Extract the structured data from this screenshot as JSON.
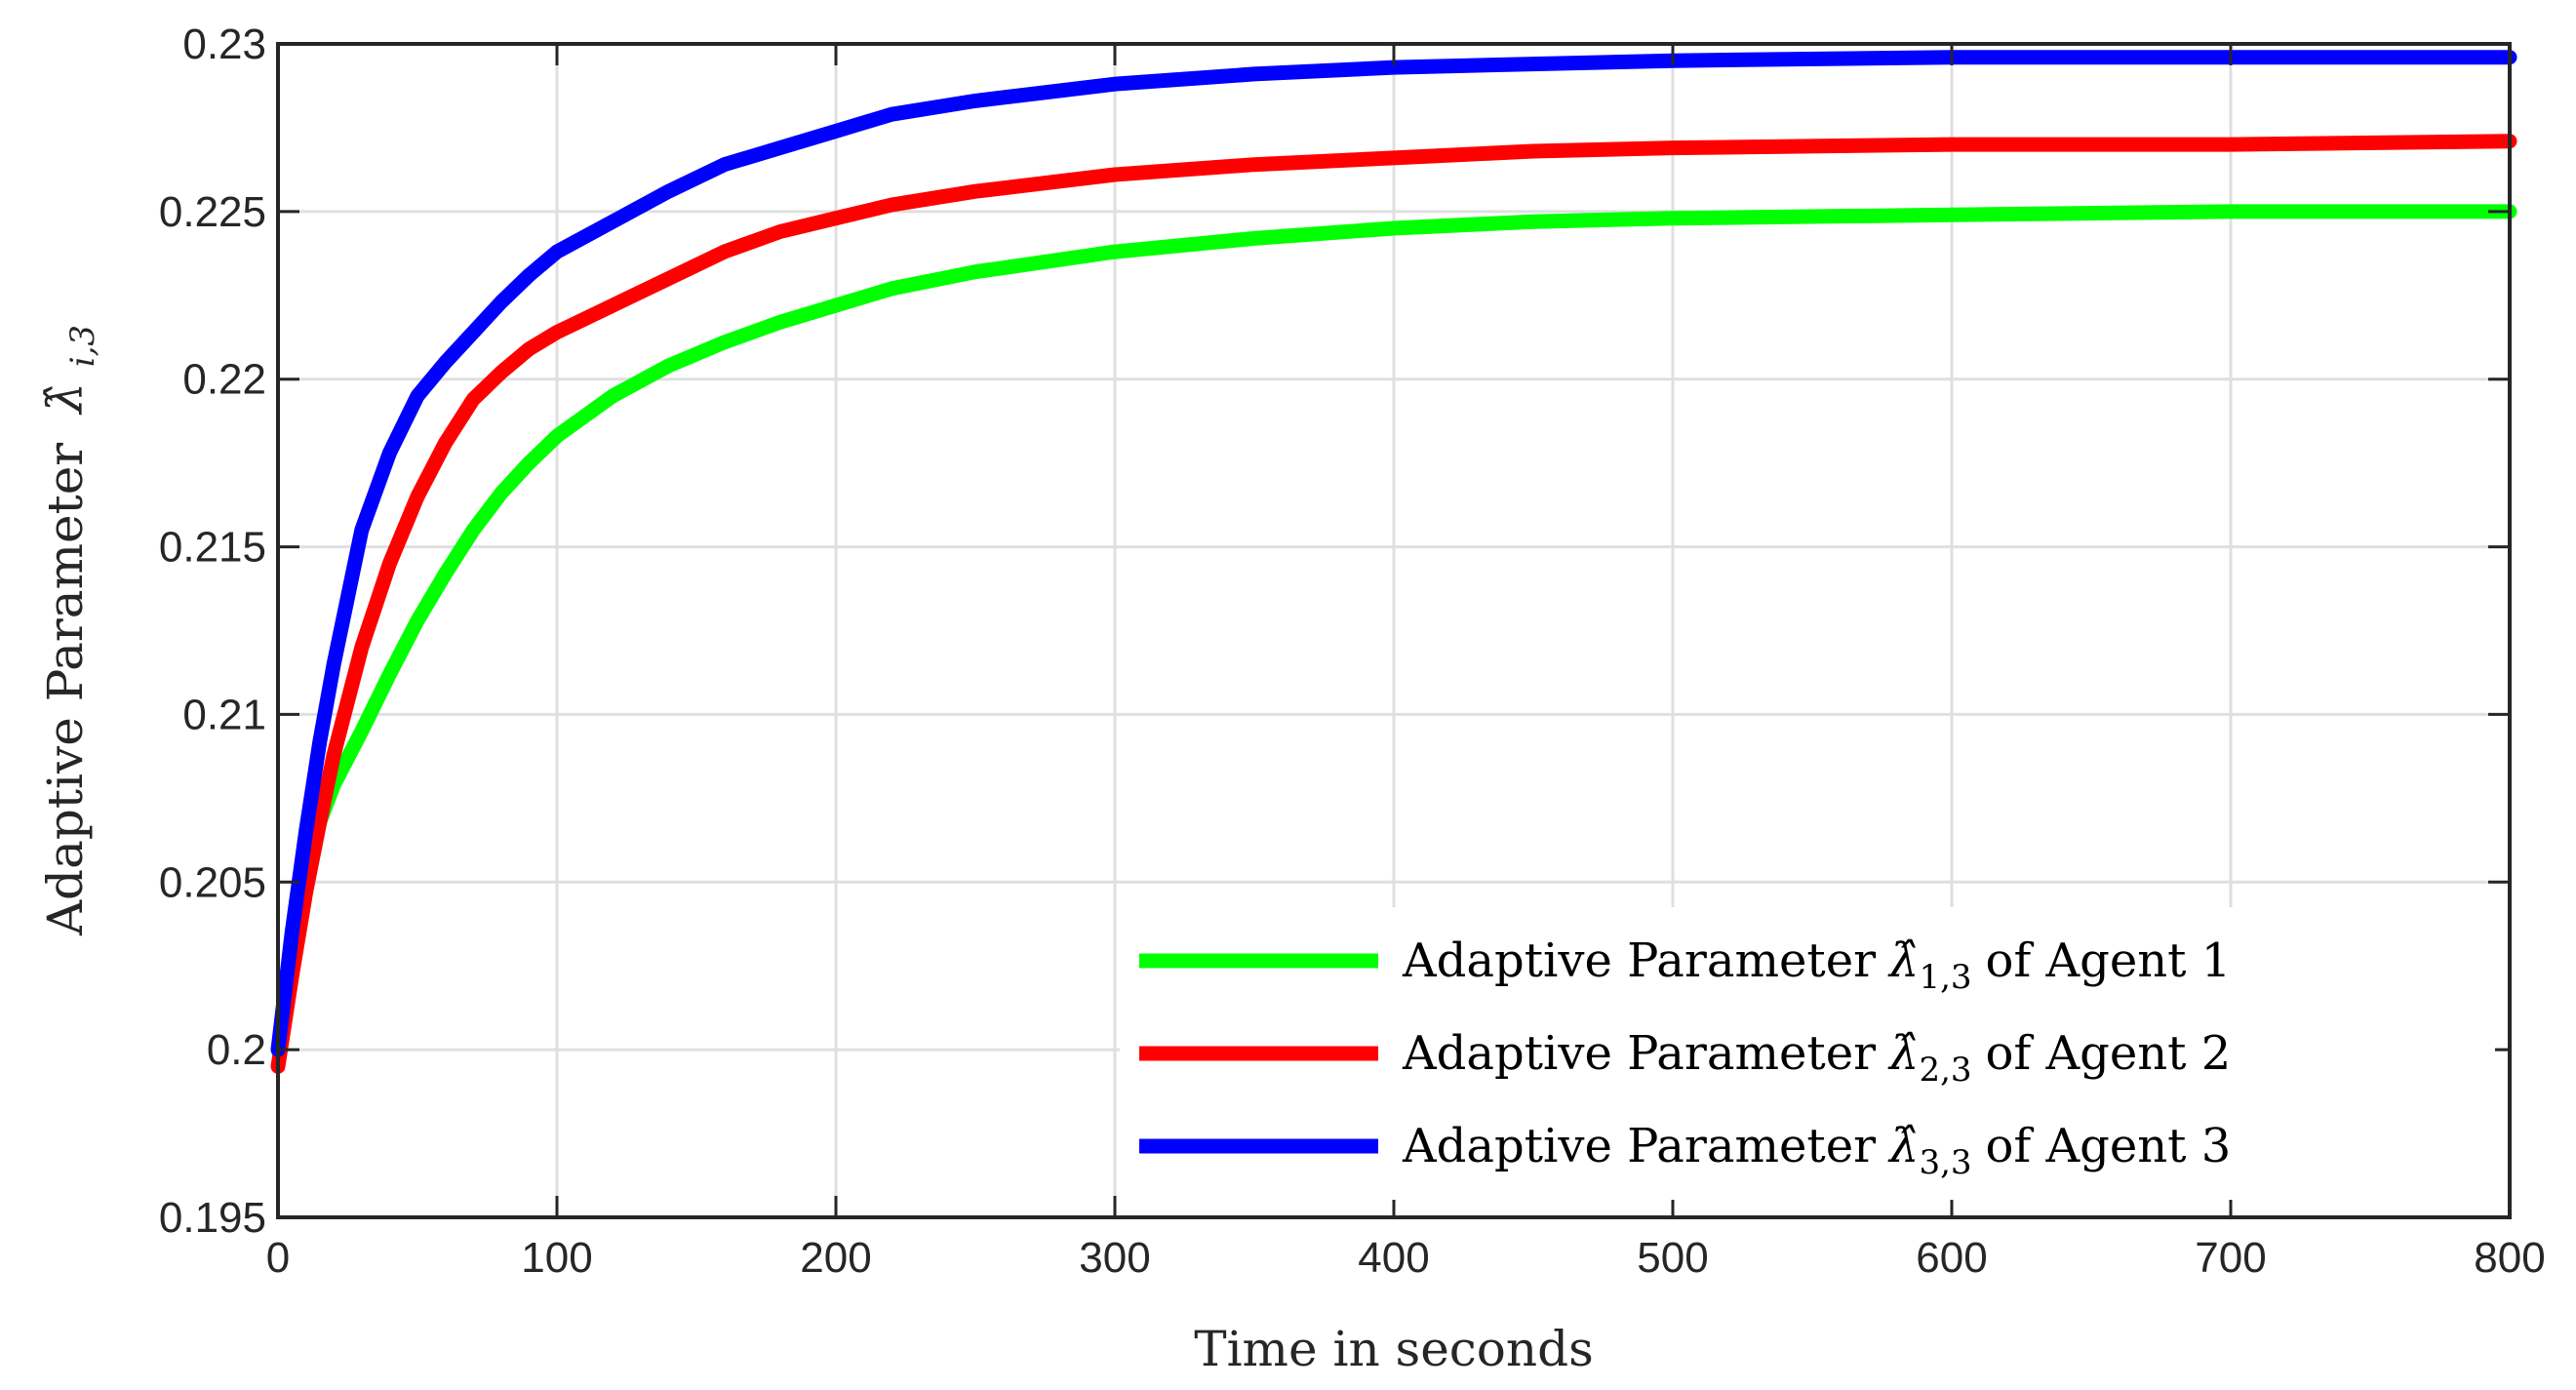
{
  "chart_data": {
    "type": "line",
    "xlabel": "Time in seconds",
    "ylabel_prefix": "Adaptive Parameter",
    "ylabel_symbol": "λ̂",
    "ylabel_subscript": "i,3",
    "xlim": [
      0,
      800
    ],
    "ylim": [
      0.195,
      0.23
    ],
    "xticks": [
      0,
      100,
      200,
      300,
      400,
      500,
      600,
      700,
      800
    ],
    "yticks": [
      0.195,
      0.2,
      0.205,
      0.21,
      0.215,
      0.22,
      0.225,
      0.23
    ],
    "xtick_labels": [
      "0",
      "100",
      "200",
      "300",
      "400",
      "500",
      "600",
      "700",
      "800"
    ],
    "ytick_labels": [
      "0.195",
      "0.2",
      "0.205",
      "0.21",
      "0.215",
      "0.22",
      "0.225",
      "0.23"
    ],
    "grid": true,
    "legend_position": "bottom-right",
    "series": [
      {
        "name": "Adaptive Parameter λ̂1,3 of Agent 1",
        "legend_prefix": "Adaptive Parameter",
        "legend_symbol": "λ̂",
        "legend_subscript": "1,3",
        "legend_suffix": "of Agent 1",
        "color": "#00ff00",
        "x": [
          0,
          5,
          10,
          15,
          20,
          30,
          40,
          50,
          60,
          70,
          80,
          90,
          100,
          120,
          140,
          160,
          180,
          200,
          220,
          250,
          300,
          350,
          400,
          450,
          500,
          600,
          700,
          800
        ],
        "y": [
          0.2,
          0.2025,
          0.2048,
          0.2068,
          0.2079,
          0.2095,
          0.2112,
          0.2128,
          0.2142,
          0.2155,
          0.2166,
          0.2175,
          0.2183,
          0.2195,
          0.2204,
          0.2211,
          0.2217,
          0.2222,
          0.2227,
          0.2232,
          0.2238,
          0.2242,
          0.2245,
          0.2247,
          0.2248,
          0.2249,
          0.225,
          0.225
        ]
      },
      {
        "name": "Adaptive Parameter λ̂2,3 of Agent 2",
        "legend_prefix": "Adaptive Parameter",
        "legend_symbol": "λ̂",
        "legend_subscript": "2,3",
        "legend_suffix": "of Agent 2",
        "color": "#ff0000",
        "x": [
          0,
          5,
          10,
          15,
          20,
          30,
          40,
          50,
          60,
          70,
          80,
          90,
          100,
          120,
          140,
          160,
          180,
          200,
          220,
          250,
          300,
          350,
          400,
          450,
          500,
          600,
          700,
          800
        ],
        "y": [
          0.1995,
          0.2022,
          0.2047,
          0.2068,
          0.2088,
          0.212,
          0.2145,
          0.2165,
          0.2181,
          0.2194,
          0.2202,
          0.2209,
          0.2214,
          0.2222,
          0.223,
          0.2238,
          0.2244,
          0.2248,
          0.2252,
          0.2256,
          0.2261,
          0.2264,
          0.2266,
          0.2268,
          0.2269,
          0.227,
          0.227,
          0.2271
        ]
      },
      {
        "name": "Adaptive Parameter λ̂3,3 of Agent 3",
        "legend_prefix": "Adaptive Parameter",
        "legend_symbol": "λ̂",
        "legend_subscript": "3,3",
        "legend_suffix": "of Agent 3",
        "color": "#0000ff",
        "x": [
          0,
          5,
          10,
          15,
          20,
          30,
          40,
          50,
          60,
          70,
          80,
          90,
          100,
          120,
          140,
          160,
          180,
          200,
          220,
          250,
          300,
          350,
          400,
          450,
          500,
          600,
          700,
          800
        ],
        "y": [
          0.2,
          0.2035,
          0.2065,
          0.2092,
          0.2115,
          0.2155,
          0.2178,
          0.2195,
          0.2205,
          0.2214,
          0.2223,
          0.2231,
          0.2238,
          0.2247,
          0.2256,
          0.2264,
          0.2269,
          0.2274,
          0.2279,
          0.2283,
          0.2288,
          0.2291,
          0.2293,
          0.2294,
          0.2295,
          0.2296,
          0.2296,
          0.2296
        ]
      }
    ]
  }
}
